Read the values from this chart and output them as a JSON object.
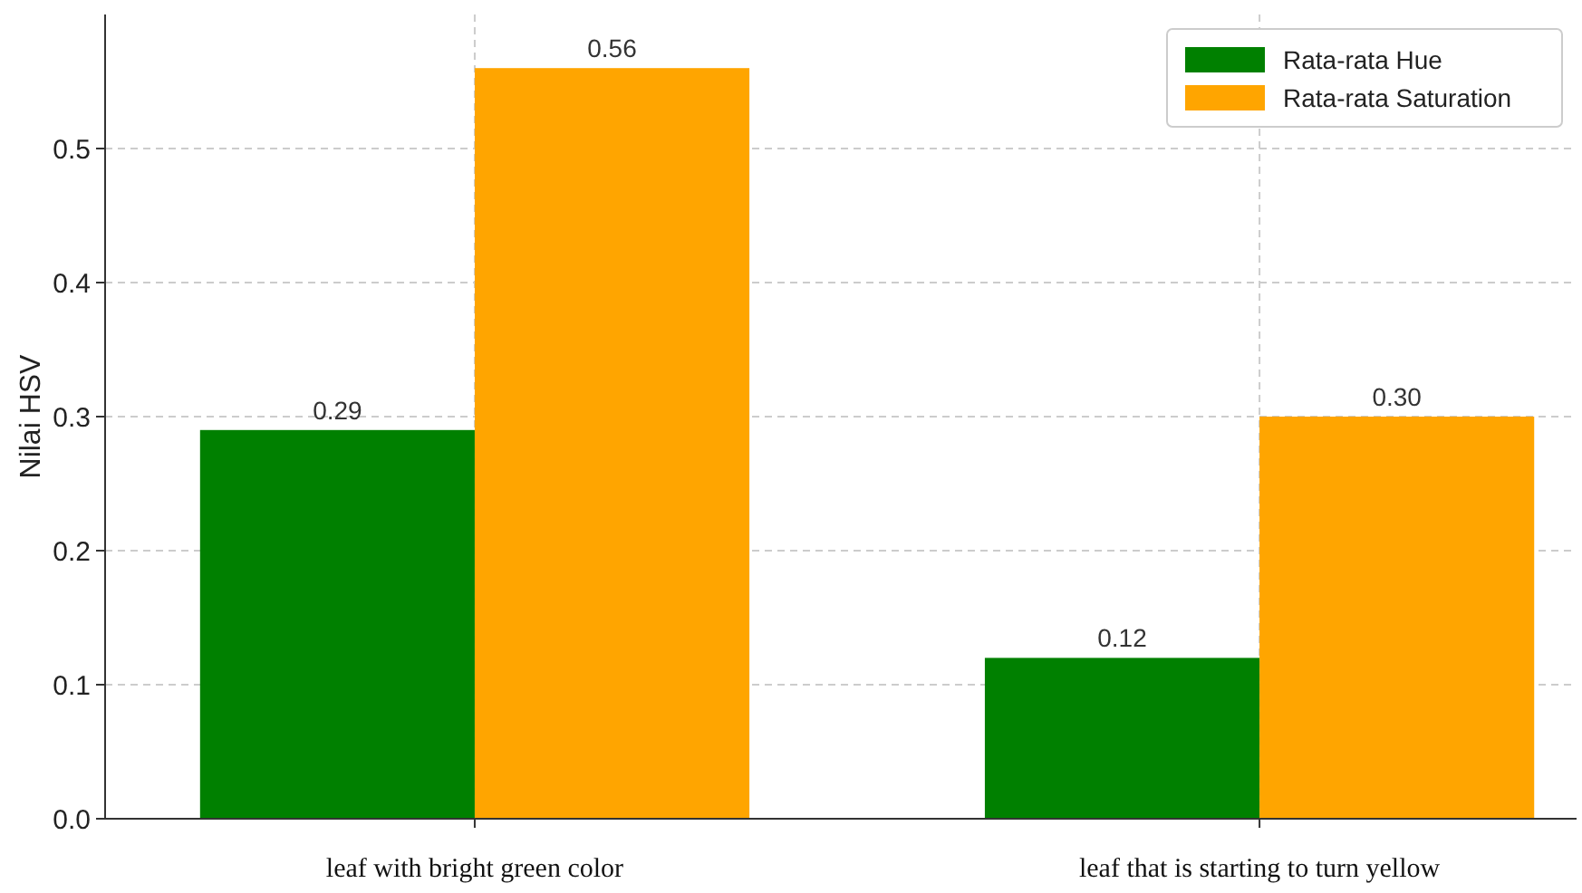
{
  "chart_data": {
    "type": "bar",
    "ylabel": "Nilai HSV",
    "categories": [
      "leaf with bright green color",
      "leaf that is starting to turn yellow"
    ],
    "series": [
      {
        "name": "Rata-rata Hue",
        "color": "#008000",
        "values": [
          0.29,
          0.12
        ],
        "value_labels": [
          "0.29",
          "0.12"
        ]
      },
      {
        "name": "Rata-rata Saturation",
        "color": "#ffa500",
        "values": [
          0.56,
          0.3
        ],
        "value_labels": [
          "0.56",
          "0.30"
        ]
      }
    ],
    "ylim": [
      0,
      0.6
    ],
    "yticks": [
      {
        "value": 0,
        "label": "0.0"
      },
      0.1,
      0.2,
      0.3,
      0.4,
      0.5
    ],
    "grid": true,
    "legend": "top right"
  }
}
